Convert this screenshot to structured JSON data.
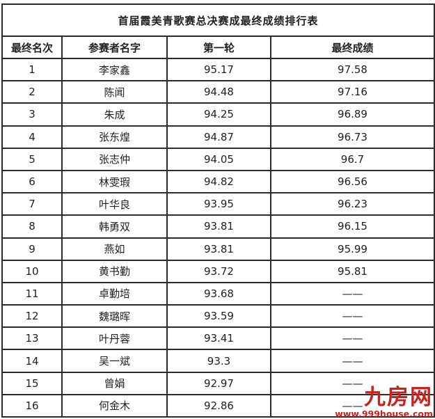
{
  "title": "首届霞美青歌赛总决赛成最终成绩排行表",
  "table": {
    "columns": [
      "最终名次",
      "参赛者名字",
      "第一轮",
      "最终成绩"
    ],
    "rows": [
      {
        "rank": "1",
        "name": "李家鑫",
        "round1": "95.17",
        "final": "97.58"
      },
      {
        "rank": "2",
        "name": "陈闻",
        "round1": "94.48",
        "final": "97.16"
      },
      {
        "rank": "3",
        "name": "朱成",
        "round1": "94.25",
        "final": "96.89"
      },
      {
        "rank": "4",
        "name": "张东煌",
        "round1": "94.87",
        "final": "96.73"
      },
      {
        "rank": "5",
        "name": "张志仲",
        "round1": "94.05",
        "final": "96.7"
      },
      {
        "rank": "6",
        "name": "林雯瑕",
        "round1": "94.82",
        "final": "96.56"
      },
      {
        "rank": "7",
        "name": "叶华良",
        "round1": "93.95",
        "final": "96.23"
      },
      {
        "rank": "8",
        "name": "韩勇双",
        "round1": "93.81",
        "final": "96.15"
      },
      {
        "rank": "9",
        "name": "燕如",
        "round1": "93.81",
        "final": "95.99"
      },
      {
        "rank": "10",
        "name": "黄书勤",
        "round1": "93.72",
        "final": "95.81"
      },
      {
        "rank": "11",
        "name": "卓勤培",
        "round1": "93.68",
        "final": "——"
      },
      {
        "rank": "12",
        "name": "魏璐晖",
        "round1": "93.59",
        "final": "——"
      },
      {
        "rank": "13",
        "name": "叶丹蓉",
        "round1": "93.41",
        "final": "——"
      },
      {
        "rank": "14",
        "name": "吴一斌",
        "round1": "93.3",
        "final": "——"
      },
      {
        "rank": "15",
        "name": "曾娟",
        "round1": "92.97",
        "final": "——"
      },
      {
        "rank": "16",
        "name": "何金木",
        "round1": "92.86",
        "final": "——"
      }
    ]
  },
  "watermark": {
    "logo": "九房网",
    "url": "www.999house.com",
    "color": "#c9221c"
  }
}
